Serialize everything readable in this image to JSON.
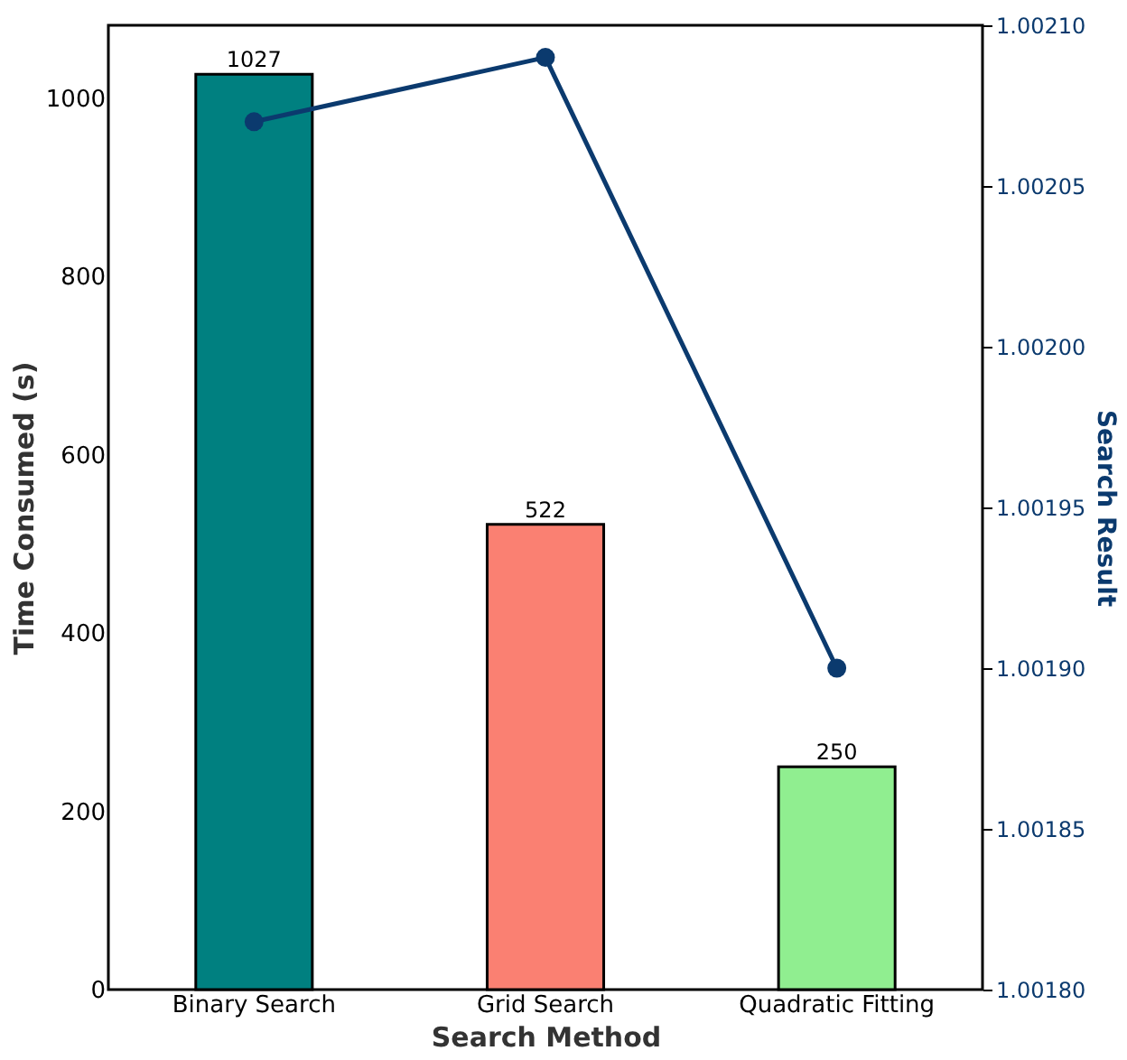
{
  "chart_data": {
    "type": "bar",
    "xlabel": "Search Method",
    "ylabel": "Time Consumed (s)",
    "y2label": "Search Result",
    "categories": [
      "Binary Search",
      "Grid Search",
      "Quadratic Fitting"
    ],
    "series": [
      {
        "colors": [
          "#008080",
          "#fa8072",
          "#90ee90"
        ],
        "values": [
          1027,
          522,
          250
        ],
        "value_labels": [
          "1027",
          "522",
          "250"
        ]
      },
      {
        "type": "line",
        "axis": "y2",
        "color": "#0b3a6e",
        "marker": "circle",
        "values": [
          1.00207,
          1.00209,
          1.0019
        ]
      }
    ],
    "ylim": [
      0,
      1082
    ],
    "yticks": [
      0,
      200,
      400,
      600,
      800,
      1000
    ],
    "y2lim": [
      1.0018,
      1.0021
    ],
    "y2ticks": [
      {
        "value": 1.0018,
        "label": "1.00180"
      },
      {
        "value": 1.00185,
        "label": "1.00185"
      },
      {
        "value": 1.0019,
        "label": "1.00190"
      },
      {
        "value": 1.00195,
        "label": "1.00195"
      },
      {
        "value": 1.002,
        "label": "1.00200"
      },
      {
        "value": 1.00205,
        "label": "1.00205"
      },
      {
        "value": 1.0021,
        "label": "1.00210"
      }
    ],
    "grid": false
  }
}
